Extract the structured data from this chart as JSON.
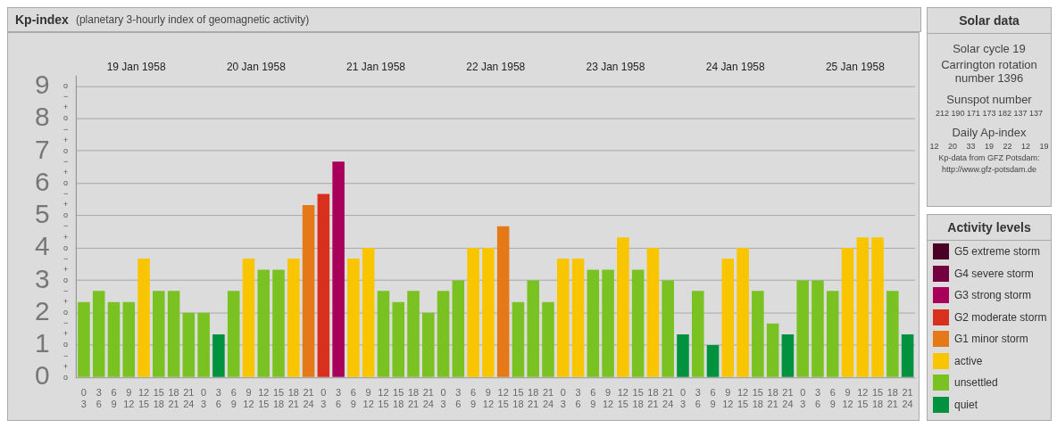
{
  "chart_data": [
    {
      "type": "bar",
      "title": "Kp-index",
      "subtitle": "(planetary 3-hourly index of geomagnetic activity)",
      "legend_title": "Activity levels",
      "legend": "right",
      "stacked": true,
      "grid": "y",
      "categories": [
        "0 3",
        "3 6",
        "6 9",
        "9 12",
        "12 15",
        "15 18",
        "18 21",
        "21 24",
        "0 3",
        "3 6",
        "6 9",
        "9 12",
        "12 15",
        "15 18",
        "18 21",
        "21 24",
        "0 3",
        "3 6",
        "6 9",
        "9 12",
        "12 15",
        "15 18",
        "18 21",
        "21 24",
        "0 3",
        "3 6",
        "6 9",
        "9 12",
        "12 15",
        "15 18",
        "18 21",
        "21 24",
        "0 3",
        "3 6",
        "6 9",
        "9 12",
        "12 15",
        "15 18",
        "18 21",
        "21 24",
        "0 3",
        "3 6",
        "6 9",
        "9 12",
        "12 15",
        "15 18",
        "18 21",
        "21 24",
        "0 3",
        "3 6",
        "6 9",
        "9 12",
        "12 15",
        "15 18",
        "18 21",
        "21 24"
      ],
      "annotations": [
        "19 Jan 1958",
        "20 Jan 1958",
        "21 Jan 1958",
        "22 Jan 1958",
        "23 Jan 1958",
        "24 Jan 1958",
        "25 Jan 1958",
        "o",
        "+",
        "−",
        "o",
        "+",
        "−",
        "o",
        "+",
        "−",
        "o",
        "+",
        "−",
        "o",
        "+",
        "−",
        "o",
        "+",
        "−",
        "o",
        "+",
        "−",
        "o",
        "+",
        "−",
        "o",
        "+",
        "−",
        "o"
      ],
      "ylim": [
        0,
        9.33
      ],
      "yticks": [
        0,
        1,
        2,
        3,
        4,
        5,
        6,
        7,
        8,
        9
      ],
      "series": [
        {
          "name": "G5 extreme storm",
          "color": "#4a0025",
          "values": [
            null,
            null,
            null,
            null,
            null,
            null,
            null,
            null,
            null,
            null,
            null,
            null,
            null,
            null,
            null,
            null,
            null,
            null,
            null,
            null,
            null,
            null,
            null,
            null,
            null,
            null,
            null,
            null,
            null,
            null,
            null,
            null,
            null,
            null,
            null,
            null,
            null,
            null,
            null,
            null,
            null,
            null,
            null,
            null,
            null,
            null,
            null,
            null,
            null,
            null,
            null,
            null,
            null,
            null,
            null,
            null
          ]
        },
        {
          "name": "G4 severe storm",
          "color": "#750040",
          "values": [
            null,
            null,
            null,
            null,
            null,
            null,
            null,
            null,
            null,
            null,
            null,
            null,
            null,
            null,
            null,
            null,
            null,
            null,
            null,
            null,
            null,
            null,
            null,
            null,
            null,
            null,
            null,
            null,
            null,
            null,
            null,
            null,
            null,
            null,
            null,
            null,
            null,
            null,
            null,
            null,
            null,
            null,
            null,
            null,
            null,
            null,
            null,
            null,
            null,
            null,
            null,
            null,
            null,
            null,
            null,
            null
          ]
        },
        {
          "name": "G3 strong storm",
          "color": "#a8005a",
          "values": [
            null,
            null,
            null,
            null,
            null,
            null,
            null,
            null,
            null,
            null,
            null,
            null,
            null,
            null,
            null,
            null,
            null,
            6.67,
            null,
            null,
            null,
            null,
            null,
            null,
            null,
            null,
            null,
            null,
            null,
            null,
            null,
            null,
            null,
            null,
            null,
            null,
            null,
            null,
            null,
            null,
            null,
            null,
            null,
            null,
            null,
            null,
            null,
            null,
            null,
            null,
            null,
            null,
            null,
            null,
            null,
            null
          ]
        },
        {
          "name": "G2 moderate storm",
          "color": "#d9301e",
          "values": [
            null,
            null,
            null,
            null,
            null,
            null,
            null,
            null,
            null,
            null,
            null,
            null,
            null,
            null,
            null,
            null,
            5.67,
            null,
            null,
            null,
            null,
            null,
            null,
            null,
            null,
            null,
            null,
            null,
            null,
            null,
            null,
            null,
            null,
            null,
            null,
            null,
            null,
            null,
            null,
            null,
            null,
            null,
            null,
            null,
            null,
            null,
            null,
            null,
            null,
            null,
            null,
            null,
            null,
            null,
            null,
            null
          ]
        },
        {
          "name": "G1 minor storm",
          "color": "#e57917",
          "values": [
            null,
            null,
            null,
            null,
            null,
            null,
            null,
            null,
            null,
            null,
            null,
            null,
            null,
            null,
            null,
            5.33,
            null,
            null,
            null,
            null,
            null,
            null,
            null,
            null,
            null,
            null,
            null,
            null,
            4.67,
            null,
            null,
            null,
            null,
            null,
            null,
            null,
            null,
            null,
            null,
            null,
            null,
            null,
            null,
            null,
            null,
            null,
            null,
            null,
            null,
            null,
            null,
            null,
            null,
            null,
            null,
            null
          ]
        },
        {
          "name": "active",
          "color": "#f8c500",
          "values": [
            null,
            null,
            null,
            null,
            3.67,
            null,
            null,
            null,
            null,
            null,
            null,
            3.67,
            null,
            null,
            3.67,
            null,
            null,
            null,
            3.67,
            4,
            null,
            null,
            null,
            null,
            null,
            null,
            4,
            4,
            null,
            null,
            null,
            null,
            3.67,
            3.67,
            null,
            null,
            4.33,
            null,
            4,
            null,
            null,
            null,
            null,
            3.67,
            4,
            null,
            null,
            null,
            null,
            null,
            null,
            4,
            4.33,
            4.33,
            null,
            null
          ]
        },
        {
          "name": "unsettled",
          "color": "#7ac122",
          "values": [
            2.33,
            2.67,
            2.33,
            2.33,
            null,
            2.67,
            2.67,
            2,
            2,
            null,
            2.67,
            null,
            3.33,
            3.33,
            null,
            null,
            null,
            null,
            null,
            null,
            2.67,
            2.33,
            2.67,
            2,
            2.67,
            3,
            null,
            null,
            null,
            2.33,
            3,
            2.33,
            null,
            null,
            3.33,
            3.33,
            null,
            3.33,
            null,
            3,
            null,
            2.67,
            null,
            null,
            null,
            2.67,
            1.67,
            null,
            3,
            3,
            2.67,
            null,
            null,
            null,
            2.67,
            null
          ]
        },
        {
          "name": "quiet",
          "color": "#00923f",
          "values": [
            null,
            null,
            null,
            null,
            null,
            null,
            null,
            null,
            null,
            1.33,
            null,
            null,
            null,
            null,
            null,
            null,
            null,
            null,
            null,
            null,
            null,
            null,
            null,
            null,
            null,
            null,
            null,
            null,
            null,
            null,
            null,
            null,
            null,
            null,
            null,
            null,
            null,
            null,
            null,
            null,
            1.33,
            null,
            1,
            null,
            null,
            null,
            null,
            1.33,
            null,
            null,
            null,
            null,
            null,
            null,
            null,
            1.33
          ]
        }
      ]
    },
    {
      "type": "other",
      "title": "Solar data",
      "annotations": [
        "Solar cycle 19",
        "Carrington rotation number 1396",
        "Sunspot number",
        "212 190 171 173 182 137 137",
        "Daily Ap-index",
        "12 20 33 19 22 12 19",
        "Kp-data from GFZ Potsdam:",
        "http://www.gfz-potsdam.de"
      ]
    }
  ]
}
